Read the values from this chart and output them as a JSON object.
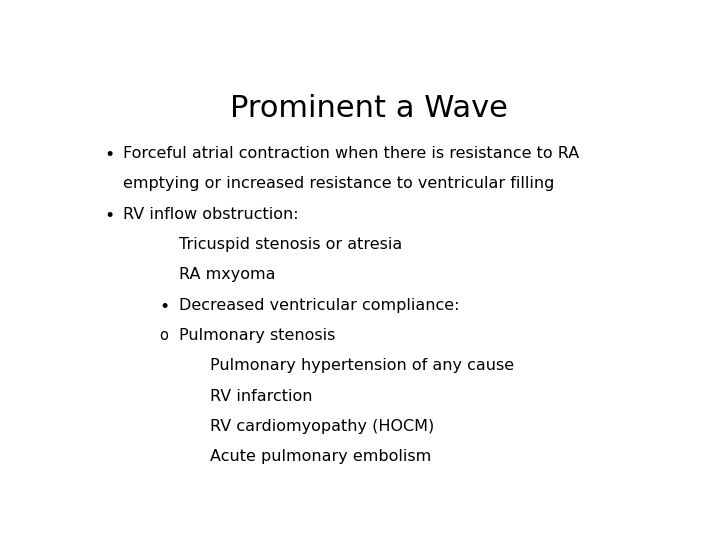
{
  "title": "Prominent a Wave",
  "title_fontsize": 22,
  "background_color": "#ffffff",
  "text_color": "#000000",
  "content_fontsize": 11.5,
  "lines": [
    {
      "type": "bullet",
      "indent": 0,
      "text1": "Forceful atrial contraction when there is resistance to RA",
      "text2": "emptying or increased resistance to ventricular filling"
    },
    {
      "type": "bullet",
      "indent": 0,
      "text1": "RV inflow obstruction:",
      "text2": null
    },
    {
      "type": "plain",
      "indent": 1,
      "text1": "Tricuspid stenosis or atresia",
      "text2": null
    },
    {
      "type": "plain",
      "indent": 1,
      "text1": "RA mxyoma",
      "text2": null
    },
    {
      "type": "bullet",
      "indent": 1,
      "text1": "Decreased ventricular compliance:",
      "text2": null
    },
    {
      "type": "circle",
      "indent": 1,
      "text1": "Pulmonary stenosis",
      "text2": null
    },
    {
      "type": "plain",
      "indent": 2,
      "text1": "Pulmonary hypertension of any cause",
      "text2": null
    },
    {
      "type": "plain",
      "indent": 2,
      "text1": "RV infarction",
      "text2": null
    },
    {
      "type": "plain",
      "indent": 2,
      "text1": "RV cardiomyopathy (HOCM)",
      "text2": null
    },
    {
      "type": "plain",
      "indent": 2,
      "text1": "Acute pulmonary embolism",
      "text2": null
    }
  ]
}
